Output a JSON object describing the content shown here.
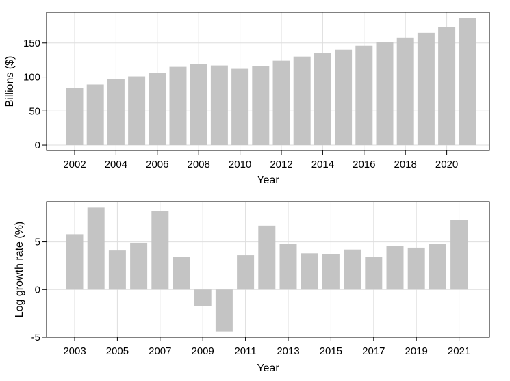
{
  "chart_data": [
    {
      "type": "bar",
      "xlabel": "Year",
      "ylabel": "Billions ($)",
      "ylim": [
        -8,
        195
      ],
      "yticks": [
        0,
        50,
        100,
        150
      ],
      "xticks": [
        2002,
        2004,
        2006,
        2008,
        2010,
        2012,
        2014,
        2016,
        2018,
        2020
      ],
      "grid": true,
      "bar_color": "#c4c4c4",
      "categories": [
        2002,
        2003,
        2004,
        2005,
        2006,
        2007,
        2008,
        2009,
        2010,
        2011,
        2012,
        2013,
        2014,
        2015,
        2016,
        2017,
        2018,
        2019,
        2020,
        2021
      ],
      "values": [
        84,
        89,
        97,
        101,
        106,
        115,
        119,
        117,
        112,
        116,
        124,
        130,
        135,
        140,
        146,
        151,
        158,
        165,
        173,
        186
      ]
    },
    {
      "type": "bar",
      "xlabel": "Year",
      "ylabel": "Log growth rate (%)",
      "ylim": [
        -5,
        9.2
      ],
      "yticks": [
        -5,
        0,
        5
      ],
      "xticks": [
        2003,
        2005,
        2007,
        2009,
        2011,
        2013,
        2015,
        2017,
        2019,
        2021
      ],
      "grid": true,
      "bar_color": "#c4c4c4",
      "categories": [
        2003,
        2004,
        2005,
        2006,
        2007,
        2008,
        2009,
        2010,
        2011,
        2012,
        2013,
        2014,
        2015,
        2016,
        2017,
        2018,
        2019,
        2020,
        2021
      ],
      "values": [
        5.8,
        8.6,
        4.1,
        4.9,
        8.2,
        3.4,
        -1.7,
        -4.4,
        3.6,
        6.7,
        4.8,
        3.8,
        3.7,
        4.2,
        3.4,
        4.6,
        4.4,
        4.8,
        7.3
      ]
    }
  ]
}
